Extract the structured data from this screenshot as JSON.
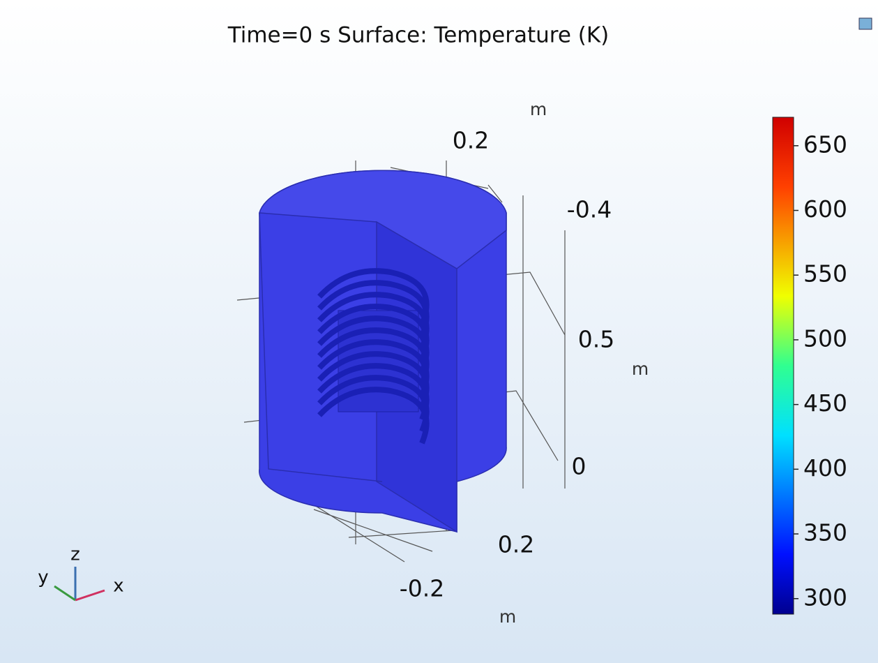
{
  "plot": {
    "title": "Time=0 s   Surface: Temperature (K)",
    "axis_labels": [
      "0.2",
      "-0.4",
      "0.5",
      "0",
      "0.2",
      "-0.2"
    ],
    "units": [
      "m",
      "m",
      "m"
    ],
    "triad": [
      "z",
      "y",
      "x"
    ],
    "colorbar": {
      "range": [
        288,
        672
      ],
      "ticks": [
        650,
        600,
        550,
        500,
        450,
        400,
        350,
        300
      ]
    }
  }
}
